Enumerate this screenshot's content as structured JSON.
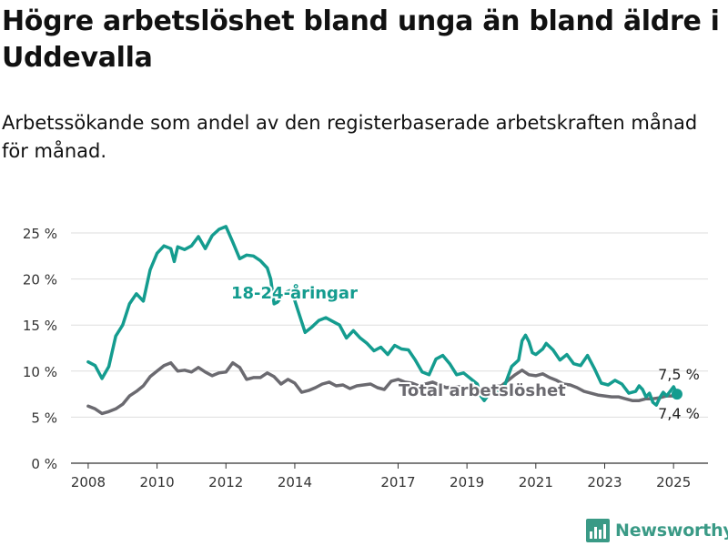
{
  "title": "Högre arbetslöshet bland unga än bland äldre i Uddevalla",
  "subtitle": "Arbetssökande som andel av den registerbaserade arbetskraften månad för månad.",
  "brand": {
    "name": "Newsworthy",
    "icon": "newsworthy-logo-icon"
  },
  "colors": {
    "youth": "#149c8f",
    "total": "#6b6a70",
    "grid": "#dddddd",
    "axis": "#333333"
  },
  "chart_data": {
    "type": "line",
    "title": "Högre arbetslöshet bland unga än bland äldre i Uddevalla",
    "subtitle": "Arbetssökande som andel av den registerbaserade arbetskraften månad för månad.",
    "xlim": [
      2007.5,
      2026.0
    ],
    "ylim": [
      0,
      25
    ],
    "grid": true,
    "x_ticks": [
      2008,
      2010,
      2012,
      2014,
      2017,
      2019,
      2021,
      2023,
      2025
    ],
    "y_ticks": [
      {
        "value": 0,
        "label": "0 %"
      },
      {
        "value": 5,
        "label": "5 %"
      },
      {
        "value": 10,
        "label": "10 %"
      },
      {
        "value": 15,
        "label": "15 %"
      },
      {
        "value": 20,
        "label": "20 %"
      },
      {
        "value": 25,
        "label": "25 %"
      }
    ],
    "series": [
      {
        "name": "18-24-åringar",
        "color": "#149c8f",
        "end_label": "7,5 %",
        "points": [
          [
            2008.0,
            11.0
          ],
          [
            2008.2,
            10.6
          ],
          [
            2008.4,
            9.2
          ],
          [
            2008.6,
            10.5
          ],
          [
            2008.8,
            13.8
          ],
          [
            2009.0,
            15.0
          ],
          [
            2009.2,
            17.3
          ],
          [
            2009.4,
            18.4
          ],
          [
            2009.6,
            17.6
          ],
          [
            2009.8,
            21.0
          ],
          [
            2010.0,
            22.8
          ],
          [
            2010.2,
            23.6
          ],
          [
            2010.4,
            23.3
          ],
          [
            2010.5,
            21.9
          ],
          [
            2010.6,
            23.5
          ],
          [
            2010.8,
            23.2
          ],
          [
            2011.0,
            23.6
          ],
          [
            2011.2,
            24.6
          ],
          [
            2011.4,
            23.3
          ],
          [
            2011.6,
            24.7
          ],
          [
            2011.8,
            25.4
          ],
          [
            2012.0,
            25.7
          ],
          [
            2012.2,
            24.0
          ],
          [
            2012.4,
            22.2
          ],
          [
            2012.6,
            22.6
          ],
          [
            2012.8,
            22.5
          ],
          [
            2013.0,
            22.0
          ],
          [
            2013.2,
            21.2
          ],
          [
            2013.3,
            20.0
          ],
          [
            2013.4,
            17.3
          ],
          [
            2013.5,
            17.5
          ],
          [
            2013.7,
            18.5
          ],
          [
            2013.9,
            18.8
          ],
          [
            2014.1,
            16.5
          ],
          [
            2014.3,
            14.2
          ],
          [
            2014.5,
            14.8
          ],
          [
            2014.7,
            15.5
          ],
          [
            2014.9,
            15.8
          ],
          [
            2015.1,
            15.4
          ],
          [
            2015.3,
            15.0
          ],
          [
            2015.5,
            13.6
          ],
          [
            2015.7,
            14.4
          ],
          [
            2015.9,
            13.6
          ],
          [
            2016.1,
            13.0
          ],
          [
            2016.3,
            12.2
          ],
          [
            2016.5,
            12.6
          ],
          [
            2016.7,
            11.8
          ],
          [
            2016.9,
            12.8
          ],
          [
            2017.1,
            12.4
          ],
          [
            2017.3,
            12.3
          ],
          [
            2017.5,
            11.2
          ],
          [
            2017.7,
            9.9
          ],
          [
            2017.9,
            9.6
          ],
          [
            2018.1,
            11.3
          ],
          [
            2018.3,
            11.7
          ],
          [
            2018.5,
            10.8
          ],
          [
            2018.7,
            9.6
          ],
          [
            2018.9,
            9.8
          ],
          [
            2019.1,
            9.2
          ],
          [
            2019.3,
            8.6
          ],
          [
            2019.4,
            7.3
          ],
          [
            2019.5,
            6.8
          ],
          [
            2019.7,
            7.8
          ],
          [
            2019.9,
            7.7
          ],
          [
            2020.1,
            8.5
          ],
          [
            2020.3,
            10.5
          ],
          [
            2020.5,
            11.2
          ],
          [
            2020.6,
            13.3
          ],
          [
            2020.7,
            13.9
          ],
          [
            2020.8,
            13.2
          ],
          [
            2020.9,
            12.0
          ],
          [
            2021.0,
            11.8
          ],
          [
            2021.2,
            12.4
          ],
          [
            2021.3,
            13.0
          ],
          [
            2021.5,
            12.3
          ],
          [
            2021.7,
            11.2
          ],
          [
            2021.9,
            11.8
          ],
          [
            2022.1,
            10.8
          ],
          [
            2022.3,
            10.6
          ],
          [
            2022.5,
            11.7
          ],
          [
            2022.7,
            10.3
          ],
          [
            2022.9,
            8.7
          ],
          [
            2023.1,
            8.5
          ],
          [
            2023.3,
            9.0
          ],
          [
            2023.5,
            8.6
          ],
          [
            2023.7,
            7.6
          ],
          [
            2023.9,
            7.8
          ],
          [
            2024.0,
            8.4
          ],
          [
            2024.1,
            8.0
          ],
          [
            2024.2,
            7.2
          ],
          [
            2024.3,
            7.6
          ],
          [
            2024.4,
            6.6
          ],
          [
            2024.5,
            6.3
          ],
          [
            2024.6,
            7.1
          ],
          [
            2024.7,
            7.7
          ],
          [
            2024.8,
            7.3
          ],
          [
            2024.9,
            7.8
          ],
          [
            2025.0,
            8.3
          ],
          [
            2025.1,
            7.5
          ]
        ]
      },
      {
        "name": "Total arbetslöshet",
        "color": "#6b6a70",
        "end_label": "7,4 %",
        "points": [
          [
            2008.0,
            6.2
          ],
          [
            2008.2,
            5.9
          ],
          [
            2008.4,
            5.4
          ],
          [
            2008.6,
            5.6
          ],
          [
            2008.8,
            5.9
          ],
          [
            2009.0,
            6.4
          ],
          [
            2009.2,
            7.3
          ],
          [
            2009.4,
            7.8
          ],
          [
            2009.6,
            8.4
          ],
          [
            2009.8,
            9.4
          ],
          [
            2010.0,
            10.0
          ],
          [
            2010.2,
            10.6
          ],
          [
            2010.4,
            10.9
          ],
          [
            2010.6,
            10.0
          ],
          [
            2010.8,
            10.1
          ],
          [
            2011.0,
            9.9
          ],
          [
            2011.2,
            10.4
          ],
          [
            2011.4,
            9.9
          ],
          [
            2011.6,
            9.5
          ],
          [
            2011.8,
            9.8
          ],
          [
            2012.0,
            9.9
          ],
          [
            2012.2,
            10.9
          ],
          [
            2012.4,
            10.4
          ],
          [
            2012.6,
            9.1
          ],
          [
            2012.8,
            9.3
          ],
          [
            2013.0,
            9.3
          ],
          [
            2013.2,
            9.8
          ],
          [
            2013.4,
            9.4
          ],
          [
            2013.6,
            8.6
          ],
          [
            2013.8,
            9.1
          ],
          [
            2014.0,
            8.7
          ],
          [
            2014.2,
            7.7
          ],
          [
            2014.4,
            7.9
          ],
          [
            2014.6,
            8.2
          ],
          [
            2014.8,
            8.6
          ],
          [
            2015.0,
            8.8
          ],
          [
            2015.2,
            8.4
          ],
          [
            2015.4,
            8.5
          ],
          [
            2015.6,
            8.1
          ],
          [
            2015.8,
            8.4
          ],
          [
            2016.0,
            8.5
          ],
          [
            2016.2,
            8.6
          ],
          [
            2016.4,
            8.2
          ],
          [
            2016.6,
            8.0
          ],
          [
            2016.8,
            8.9
          ],
          [
            2017.0,
            9.1
          ],
          [
            2017.2,
            8.8
          ],
          [
            2017.4,
            8.7
          ],
          [
            2017.6,
            8.4
          ],
          [
            2017.8,
            8.6
          ],
          [
            2018.0,
            8.8
          ],
          [
            2018.2,
            8.5
          ],
          [
            2018.4,
            8.2
          ],
          [
            2018.6,
            8.3
          ],
          [
            2018.8,
            8.3
          ],
          [
            2019.0,
            8.1
          ],
          [
            2019.2,
            7.9
          ],
          [
            2019.4,
            8.0
          ],
          [
            2019.6,
            8.1
          ],
          [
            2019.8,
            8.3
          ],
          [
            2020.0,
            8.4
          ],
          [
            2020.2,
            9.0
          ],
          [
            2020.4,
            9.6
          ],
          [
            2020.6,
            10.1
          ],
          [
            2020.8,
            9.6
          ],
          [
            2021.0,
            9.5
          ],
          [
            2021.2,
            9.7
          ],
          [
            2021.4,
            9.3
          ],
          [
            2021.6,
            9.0
          ],
          [
            2021.8,
            8.6
          ],
          [
            2022.0,
            8.5
          ],
          [
            2022.2,
            8.2
          ],
          [
            2022.4,
            7.8
          ],
          [
            2022.6,
            7.6
          ],
          [
            2022.8,
            7.4
          ],
          [
            2023.0,
            7.3
          ],
          [
            2023.2,
            7.2
          ],
          [
            2023.4,
            7.2
          ],
          [
            2023.6,
            7.0
          ],
          [
            2023.8,
            6.8
          ],
          [
            2024.0,
            6.8
          ],
          [
            2024.2,
            7.0
          ],
          [
            2024.4,
            7.0
          ],
          [
            2024.6,
            7.1
          ],
          [
            2024.8,
            7.3
          ],
          [
            2025.0,
            7.3
          ],
          [
            2025.1,
            7.4
          ]
        ]
      }
    ]
  }
}
